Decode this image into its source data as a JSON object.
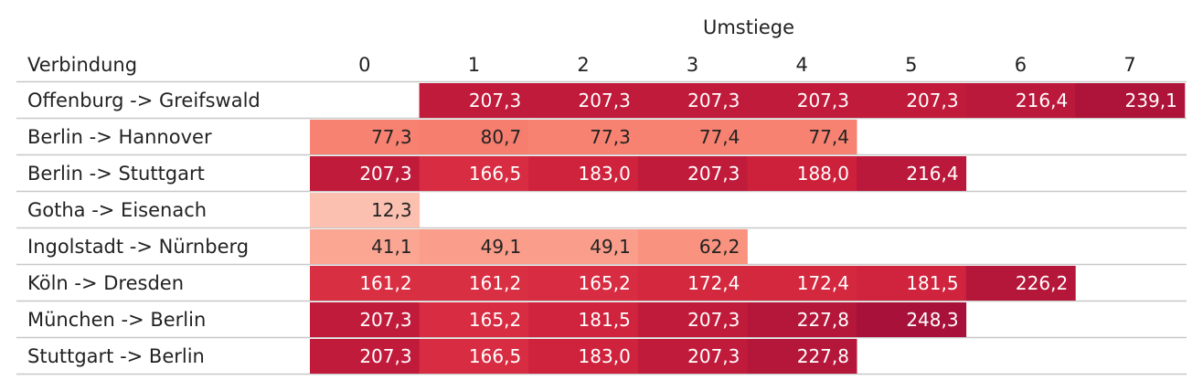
{
  "chart_data": {
    "type": "heatmap",
    "column_group_title": "Umstiege",
    "row_header": "Verbindung",
    "columns": [
      "0",
      "1",
      "2",
      "3",
      "4",
      "5",
      "6",
      "7"
    ],
    "rows": [
      {
        "label": "Offenburg -> Greifswald",
        "values": [
          null,
          207.3,
          207.3,
          207.3,
          207.3,
          207.3,
          216.4,
          239.1
        ],
        "display": [
          "",
          "207,3",
          "207,3",
          "207,3",
          "207,3",
          "207,3",
          "216,4",
          "239,1"
        ]
      },
      {
        "label": "Berlin -> Hannover",
        "values": [
          77.3,
          80.7,
          77.3,
          77.4,
          77.4,
          null,
          null,
          null
        ],
        "display": [
          "77,3",
          "80,7",
          "77,3",
          "77,4",
          "77,4",
          "",
          "",
          ""
        ]
      },
      {
        "label": "Berlin -> Stuttgart",
        "values": [
          207.3,
          166.5,
          183.0,
          207.3,
          188.0,
          216.4,
          null,
          null
        ],
        "display": [
          "207,3",
          "166,5",
          "183,0",
          "207,3",
          "188,0",
          "216,4",
          "",
          ""
        ]
      },
      {
        "label": "Gotha -> Eisenach",
        "values": [
          12.3,
          null,
          null,
          null,
          null,
          null,
          null,
          null
        ],
        "display": [
          "12,3",
          "",
          "",
          "",
          "",
          "",
          "",
          ""
        ]
      },
      {
        "label": "Ingolstadt -> Nürnberg",
        "values": [
          41.1,
          49.1,
          49.1,
          62.2,
          null,
          null,
          null,
          null
        ],
        "display": [
          "41,1",
          "49,1",
          "49,1",
          "62,2",
          "",
          "",
          "",
          ""
        ]
      },
      {
        "label": "Köln -> Dresden",
        "values": [
          161.2,
          161.2,
          165.2,
          172.4,
          172.4,
          181.5,
          226.2,
          null
        ],
        "display": [
          "161,2",
          "161,2",
          "165,2",
          "172,4",
          "172,4",
          "181,5",
          "226,2",
          ""
        ]
      },
      {
        "label": "München -> Berlin",
        "values": [
          207.3,
          165.2,
          181.5,
          207.3,
          227.8,
          248.3,
          null,
          null
        ],
        "display": [
          "207,3",
          "165,2",
          "181,5",
          "207,3",
          "227,8",
          "248,3",
          "",
          ""
        ]
      },
      {
        "label": "Stuttgart -> Berlin",
        "values": [
          207.3,
          166.5,
          183.0,
          207.3,
          227.8,
          null,
          null,
          null
        ],
        "display": [
          "207,3",
          "166,5",
          "183,0",
          "207,3",
          "227,8",
          "",
          "",
          ""
        ]
      }
    ],
    "value_range": [
      12.3,
      248.3
    ],
    "color_scale": [
      "#fcc0b0",
      "#f98a75",
      "#e8404a",
      "#cc1f3b",
      "#a8123a"
    ],
    "label_color_light": "#222222",
    "label_color_dark": "#ffffff"
  }
}
